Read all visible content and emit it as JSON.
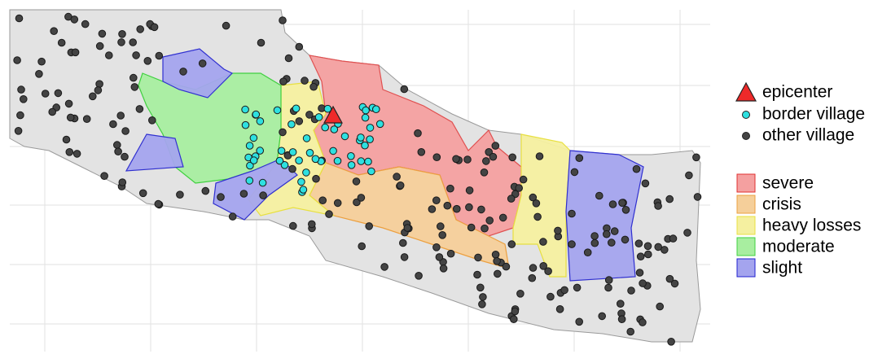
{
  "legend": {
    "markers": [
      {
        "label": "epicenter"
      },
      {
        "label": "border village"
      },
      {
        "label": "other village"
      }
    ],
    "impact_levels": [
      {
        "label": "severe"
      },
      {
        "label": "crisis"
      },
      {
        "label": "heavy losses"
      },
      {
        "label": "moderate"
      },
      {
        "label": "slight"
      }
    ]
  }
}
